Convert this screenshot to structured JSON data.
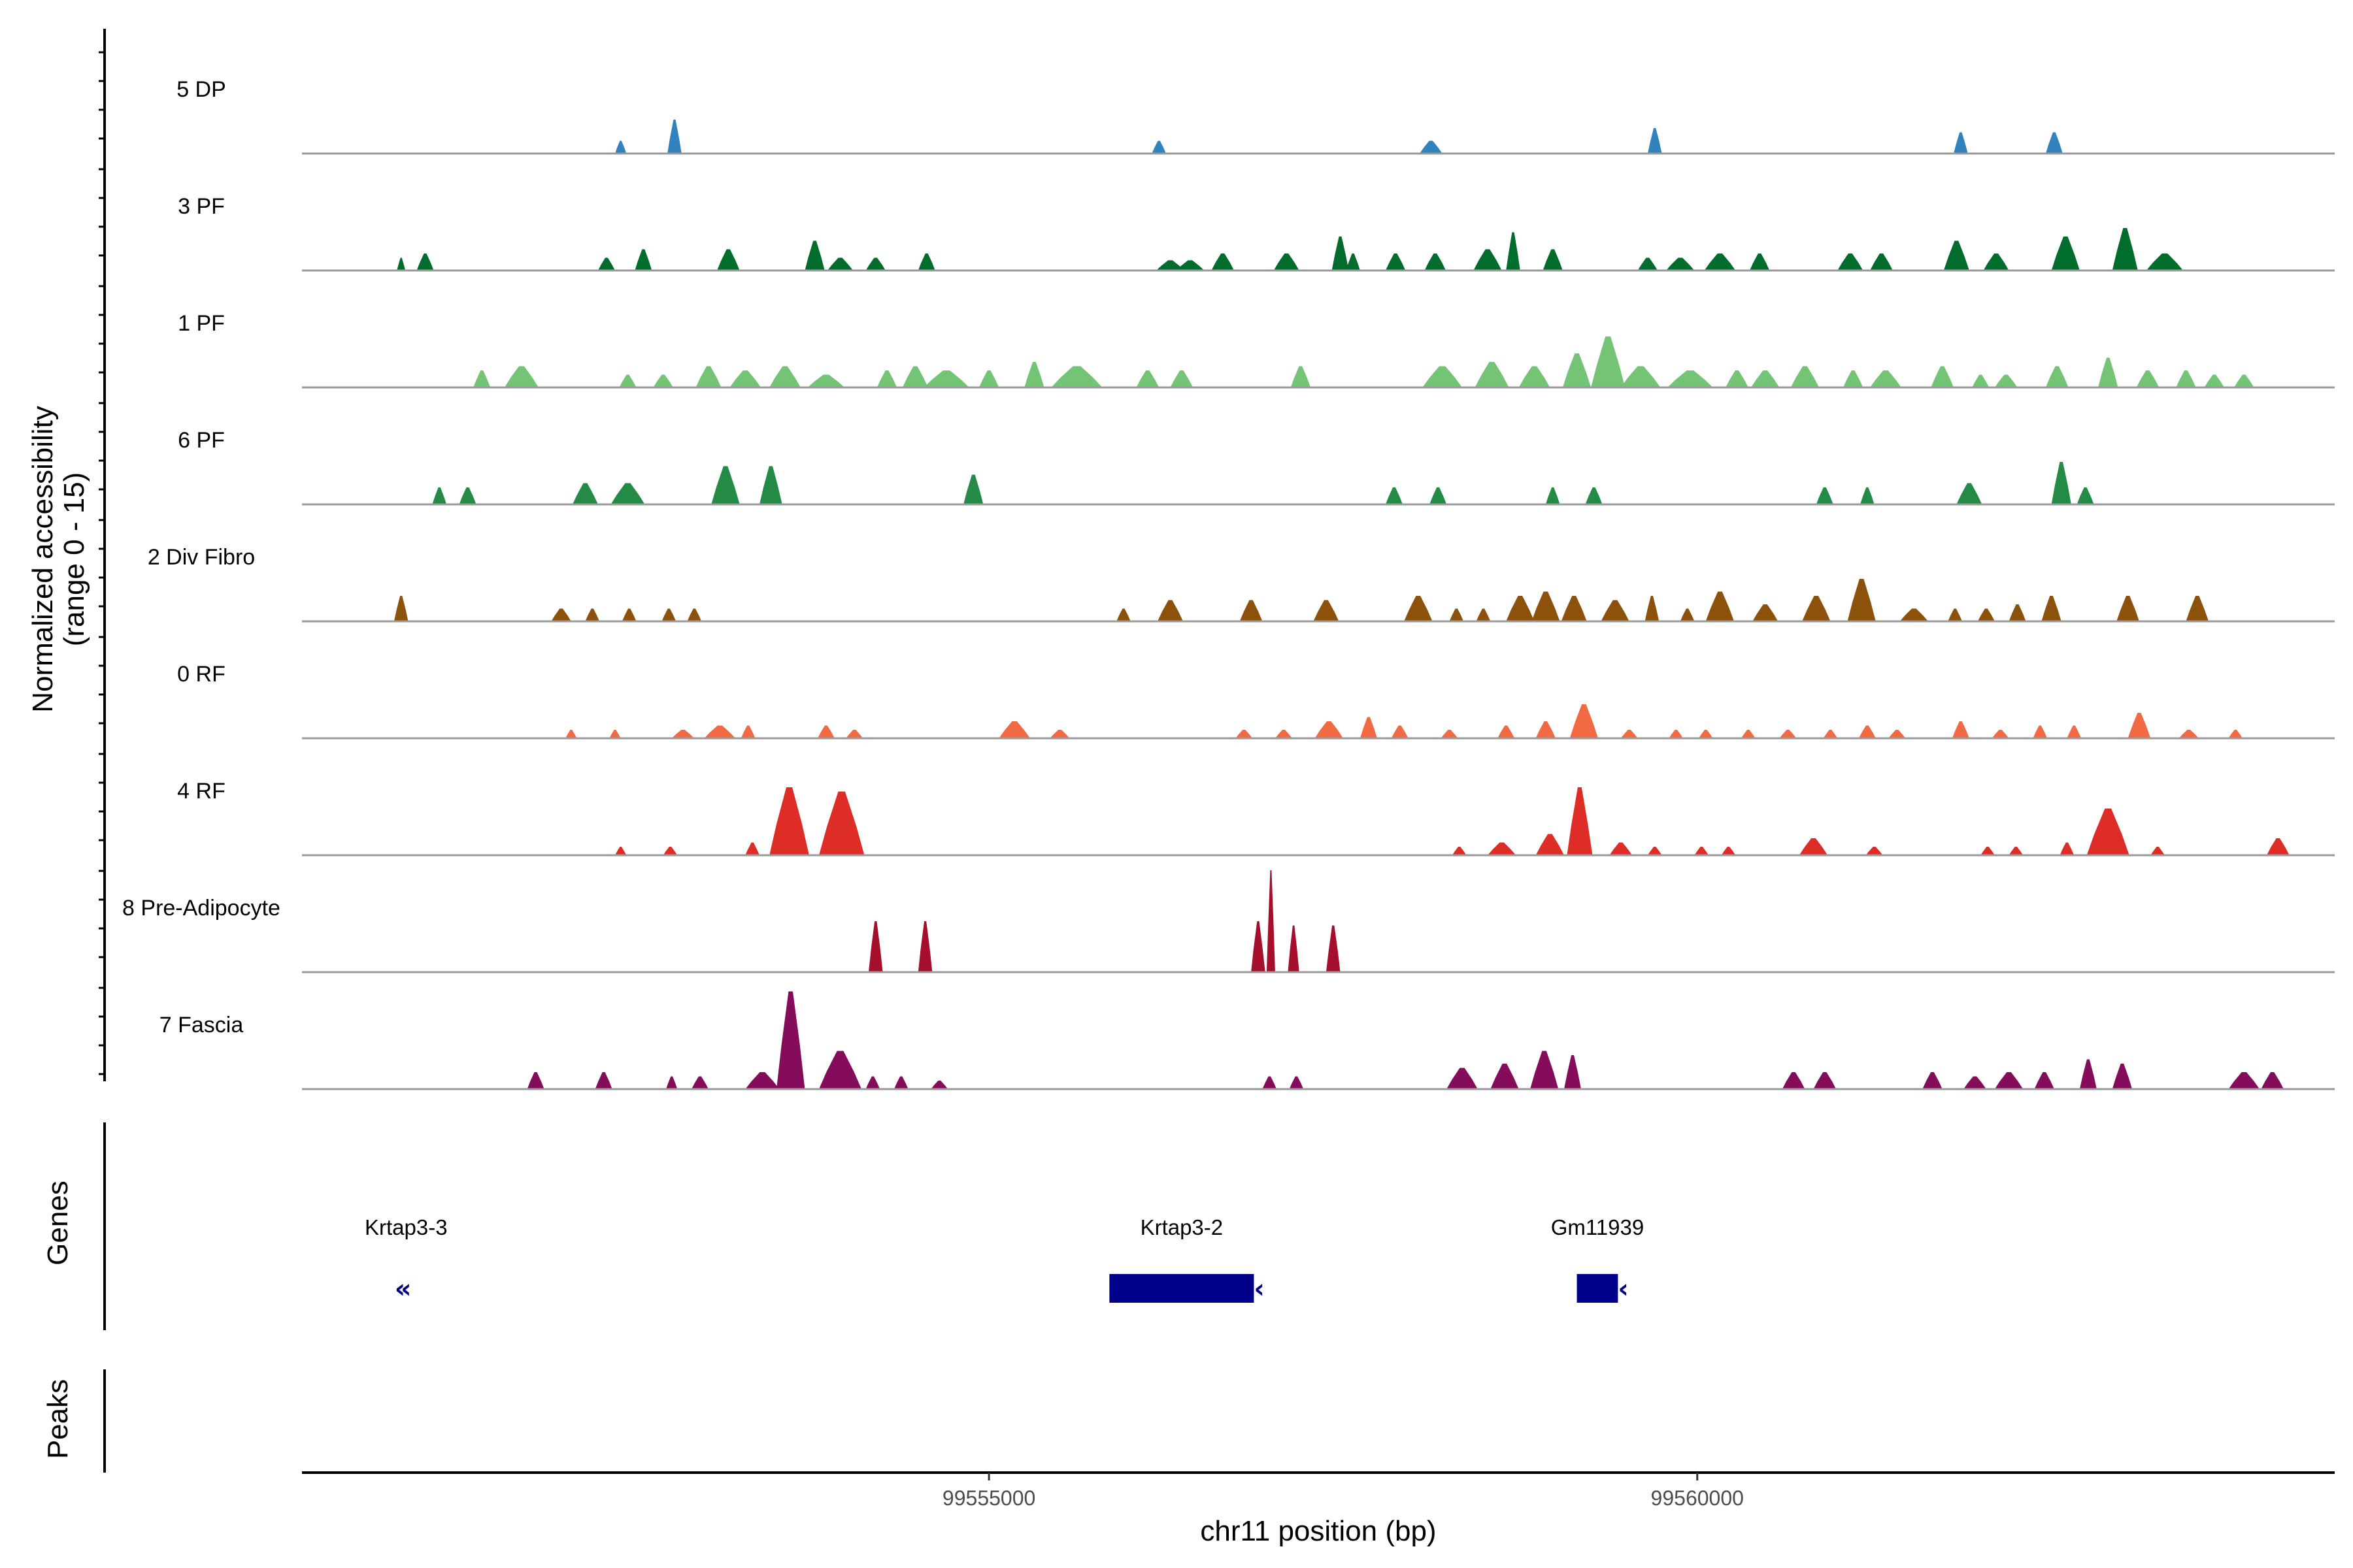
{
  "chart_data": {
    "type": "area",
    "title": "",
    "ylabel_lines": [
      "Normalized accessibility",
      "(range 0 - 15)"
    ],
    "xlabel": "chr11 position (bp)",
    "xlim": [
      99550150,
      99564500
    ],
    "ylim": [
      0,
      15
    ],
    "x_ticks": [
      {
        "value": 99555000,
        "label": "99555000"
      },
      {
        "value": 99560000,
        "label": "99560000"
      }
    ],
    "grid": false,
    "legend": "none",
    "tracks": [
      {
        "name": "5 DP",
        "color": "#3182bd",
        "peaks": [
          [
            99552400,
            80,
            1.5
          ],
          [
            99552780,
            100,
            4.0
          ],
          [
            99556200,
            100,
            1.5
          ],
          [
            99558120,
            160,
            1.5
          ],
          [
            99559700,
            100,
            3.0
          ],
          [
            99561860,
            100,
            2.5
          ],
          [
            99562520,
            120,
            2.5
          ]
        ]
      },
      {
        "name": "3 PF",
        "color": "#006d2c",
        "peaks": [
          [
            99550850,
            60,
            1.5
          ],
          [
            99551020,
            120,
            2.0
          ],
          [
            99552300,
            120,
            1.5
          ],
          [
            99552560,
            120,
            2.5
          ],
          [
            99553160,
            160,
            2.5
          ],
          [
            99553770,
            140,
            3.5
          ],
          [
            99553950,
            180,
            1.5
          ],
          [
            99554200,
            140,
            1.5
          ],
          [
            99554560,
            120,
            2.0
          ],
          [
            99556280,
            200,
            1.2
          ],
          [
            99556420,
            200,
            1.2
          ],
          [
            99556650,
            160,
            2.0
          ],
          [
            99557100,
            180,
            2.0
          ],
          [
            99557480,
            120,
            4.0
          ],
          [
            99557570,
            100,
            2.0
          ],
          [
            99557870,
            140,
            2.0
          ],
          [
            99558150,
            150,
            2.0
          ],
          [
            99558520,
            200,
            2.5
          ],
          [
            99558700,
            100,
            4.5
          ],
          [
            99558980,
            140,
            2.5
          ],
          [
            99559650,
            140,
            1.5
          ],
          [
            99559880,
            200,
            1.5
          ],
          [
            99560160,
            220,
            2.0
          ],
          [
            99560440,
            140,
            2.0
          ],
          [
            99561080,
            180,
            2.0
          ],
          [
            99561300,
            160,
            2.0
          ],
          [
            99561830,
            180,
            3.5
          ],
          [
            99562110,
            180,
            2.0
          ],
          [
            99562600,
            200,
            4.0
          ],
          [
            99563020,
            180,
            5.0
          ],
          [
            99563300,
            260,
            2.0
          ]
        ]
      },
      {
        "name": "1 PF",
        "color": "#74c476",
        "peaks": [
          [
            99551420,
            120,
            2.0
          ],
          [
            99551700,
            240,
            2.5
          ],
          [
            99552450,
            120,
            1.5
          ],
          [
            99552700,
            140,
            1.5
          ],
          [
            99553020,
            180,
            2.5
          ],
          [
            99553280,
            220,
            2.0
          ],
          [
            99553560,
            220,
            2.5
          ],
          [
            99553850,
            260,
            1.5
          ],
          [
            99554280,
            140,
            2.0
          ],
          [
            99554480,
            180,
            2.5
          ],
          [
            99554700,
            320,
            2.0
          ],
          [
            99555000,
            140,
            2.0
          ],
          [
            99555320,
            140,
            3.0
          ],
          [
            99555620,
            360,
            2.5
          ],
          [
            99556120,
            160,
            2.0
          ],
          [
            99556360,
            160,
            2.0
          ],
          [
            99557200,
            140,
            2.5
          ],
          [
            99558200,
            280,
            2.5
          ],
          [
            99558550,
            240,
            3.0
          ],
          [
            99558850,
            220,
            2.5
          ],
          [
            99559150,
            200,
            4.0
          ],
          [
            99559370,
            240,
            6.0
          ],
          [
            99559600,
            280,
            2.5
          ],
          [
            99559950,
            320,
            2.0
          ],
          [
            99560280,
            160,
            2.0
          ],
          [
            99560480,
            200,
            2.0
          ],
          [
            99560760,
            200,
            2.5
          ],
          [
            99561100,
            140,
            2.0
          ],
          [
            99561330,
            220,
            2.0
          ],
          [
            99561730,
            160,
            2.5
          ],
          [
            99562000,
            120,
            1.5
          ],
          [
            99562180,
            160,
            1.5
          ],
          [
            99562540,
            160,
            2.5
          ],
          [
            99562900,
            140,
            3.5
          ],
          [
            99563180,
            160,
            2.0
          ],
          [
            99563450,
            140,
            2.0
          ],
          [
            99563650,
            140,
            1.5
          ],
          [
            99563860,
            140,
            1.5
          ]
        ]
      },
      {
        "name": "6 PF",
        "color": "#238b45",
        "peaks": [
          [
            99551120,
            100,
            2.0
          ],
          [
            99551320,
            120,
            2.0
          ],
          [
            99552150,
            180,
            2.5
          ],
          [
            99552450,
            240,
            2.5
          ],
          [
            99553140,
            200,
            4.5
          ],
          [
            99553460,
            160,
            4.5
          ],
          [
            99554890,
            140,
            3.5
          ],
          [
            99557860,
            120,
            2.0
          ],
          [
            99558170,
            120,
            2.0
          ],
          [
            99558980,
            100,
            2.0
          ],
          [
            99559270,
            120,
            2.0
          ],
          [
            99560900,
            120,
            2.0
          ],
          [
            99561200,
            100,
            2.0
          ],
          [
            99561920,
            180,
            2.5
          ],
          [
            99562570,
            140,
            5.0
          ],
          [
            99562740,
            120,
            2.0
          ]
        ]
      },
      {
        "name": "2 Div Fibro",
        "color": "#8c510a",
        "peaks": [
          [
            99550850,
            100,
            3.0
          ],
          [
            99551980,
            140,
            1.5
          ],
          [
            99552200,
            100,
            1.5
          ],
          [
            99552460,
            100,
            1.5
          ],
          [
            99552740,
            100,
            1.5
          ],
          [
            99552920,
            100,
            1.5
          ],
          [
            99555950,
            100,
            1.5
          ],
          [
            99556280,
            180,
            2.5
          ],
          [
            99556850,
            160,
            2.5
          ],
          [
            99557380,
            180,
            2.5
          ],
          [
            99558030,
            200,
            3.0
          ],
          [
            99558300,
            100,
            1.5
          ],
          [
            99558490,
            100,
            1.5
          ],
          [
            99558750,
            200,
            3.0
          ],
          [
            99558930,
            200,
            3.5
          ],
          [
            99559130,
            180,
            3.0
          ],
          [
            99559420,
            200,
            2.5
          ],
          [
            99559680,
            100,
            3.0
          ],
          [
            99559930,
            100,
            1.5
          ],
          [
            99560160,
            200,
            3.5
          ],
          [
            99560480,
            180,
            2.0
          ],
          [
            99560840,
            200,
            3.0
          ],
          [
            99561160,
            200,
            5.0
          ],
          [
            99561530,
            200,
            1.5
          ],
          [
            99561820,
            100,
            1.5
          ],
          [
            99562040,
            120,
            1.5
          ],
          [
            99562260,
            120,
            2.0
          ],
          [
            99562500,
            140,
            3.0
          ],
          [
            99563040,
            160,
            3.0
          ],
          [
            99563530,
            160,
            3.0
          ]
        ]
      },
      {
        "name": "0 RF",
        "color": "#f16a43",
        "peaks": [
          [
            99552050,
            80,
            1.0
          ],
          [
            99552360,
            80,
            1.0
          ],
          [
            99552840,
            160,
            1.0
          ],
          [
            99553100,
            220,
            1.5
          ],
          [
            99553300,
            100,
            1.5
          ],
          [
            99553850,
            120,
            1.5
          ],
          [
            99554050,
            120,
            1.0
          ],
          [
            99555180,
            220,
            2.0
          ],
          [
            99555500,
            140,
            1.0
          ],
          [
            99556800,
            120,
            1.0
          ],
          [
            99557080,
            120,
            1.0
          ],
          [
            99557400,
            200,
            2.0
          ],
          [
            99557680,
            120,
            2.5
          ],
          [
            99557900,
            120,
            1.5
          ],
          [
            99558250,
            120,
            1.0
          ],
          [
            99558650,
            120,
            1.5
          ],
          [
            99558930,
            140,
            2.0
          ],
          [
            99559200,
            200,
            4.0
          ],
          [
            99559520,
            120,
            1.0
          ],
          [
            99559850,
            100,
            1.0
          ],
          [
            99560060,
            100,
            1.0
          ],
          [
            99560360,
            100,
            1.0
          ],
          [
            99560640,
            120,
            1.0
          ],
          [
            99560940,
            100,
            1.0
          ],
          [
            99561200,
            120,
            1.5
          ],
          [
            99561410,
            120,
            1.0
          ],
          [
            99561860,
            120,
            2.0
          ],
          [
            99562140,
            120,
            1.0
          ],
          [
            99562420,
            100,
            1.5
          ],
          [
            99562660,
            100,
            1.5
          ],
          [
            99563120,
            160,
            3.0
          ],
          [
            99563470,
            140,
            1.0
          ],
          [
            99563800,
            100,
            1.0
          ]
        ]
      },
      {
        "name": "4 RF",
        "color": "#de2d26",
        "peaks": [
          [
            99552400,
            80,
            1.0
          ],
          [
            99552750,
            100,
            1.0
          ],
          [
            99553330,
            100,
            1.5
          ],
          [
            99553590,
            280,
            8.0
          ],
          [
            99553960,
            320,
            7.5
          ],
          [
            99558320,
            100,
            1.0
          ],
          [
            99558620,
            200,
            1.5
          ],
          [
            99558960,
            200,
            2.5
          ],
          [
            99559170,
            180,
            8.0
          ],
          [
            99559460,
            160,
            1.5
          ],
          [
            99559700,
            100,
            1.0
          ],
          [
            99560030,
            100,
            1.0
          ],
          [
            99560220,
            100,
            1.0
          ],
          [
            99560820,
            200,
            2.0
          ],
          [
            99561250,
            120,
            1.0
          ],
          [
            99562050,
            100,
            1.0
          ],
          [
            99562250,
            100,
            1.0
          ],
          [
            99562610,
            100,
            1.5
          ],
          [
            99562900,
            300,
            5.5
          ],
          [
            99563250,
            100,
            1.0
          ],
          [
            99564100,
            160,
            2.0
          ]
        ]
      },
      {
        "name": "8 Pre-Adipocyte",
        "color": "#a50f2b",
        "peaks": [
          [
            99554200,
            100,
            6.0
          ],
          [
            99554550,
            100,
            6.0
          ],
          [
            99556900,
            100,
            6.0
          ],
          [
            99557150,
            80,
            5.5
          ],
          [
            99557430,
            100,
            5.5
          ],
          [
            99556990,
            60,
            12.0
          ]
        ]
      },
      {
        "name": "7 Fascia",
        "color": "#850c5a",
        "peaks": [
          [
            99551800,
            120,
            2.0
          ],
          [
            99552280,
            120,
            2.0
          ],
          [
            99552760,
            80,
            1.5
          ],
          [
            99552960,
            120,
            1.5
          ],
          [
            99553400,
            240,
            2.0
          ],
          [
            99553600,
            200,
            11.5
          ],
          [
            99553950,
            300,
            4.5
          ],
          [
            99554180,
            100,
            1.5
          ],
          [
            99554380,
            100,
            1.5
          ],
          [
            99554650,
            120,
            1.0
          ],
          [
            99556980,
            100,
            1.5
          ],
          [
            99557170,
            100,
            1.5
          ],
          [
            99558340,
            220,
            2.5
          ],
          [
            99558640,
            200,
            3.0
          ],
          [
            99558920,
            200,
            4.5
          ],
          [
            99559120,
            120,
            4.0
          ],
          [
            99560680,
            160,
            2.0
          ],
          [
            99560900,
            160,
            2.0
          ],
          [
            99561660,
            140,
            2.0
          ],
          [
            99561960,
            160,
            1.5
          ],
          [
            99562200,
            200,
            2.0
          ],
          [
            99562450,
            140,
            2.0
          ],
          [
            99562760,
            120,
            3.5
          ],
          [
            99563000,
            140,
            3.0
          ],
          [
            99563860,
            220,
            2.0
          ],
          [
            99564060,
            160,
            2.0
          ]
        ]
      }
    ],
    "genes_panel_title": "Genes",
    "genes": [
      {
        "name": "Krtap3-3",
        "start": 99550850,
        "end": 99550920,
        "strand": "-"
      },
      {
        "name": "Krtap3-2",
        "start": 99555850,
        "end": 99556870,
        "strand": "-"
      },
      {
        "name": "Gm11939",
        "start": 99559150,
        "end": 99559440,
        "strand": "-"
      }
    ],
    "gene_color": "#00008b",
    "peaks_panel_title": "Peaks",
    "peaks_regions": []
  }
}
